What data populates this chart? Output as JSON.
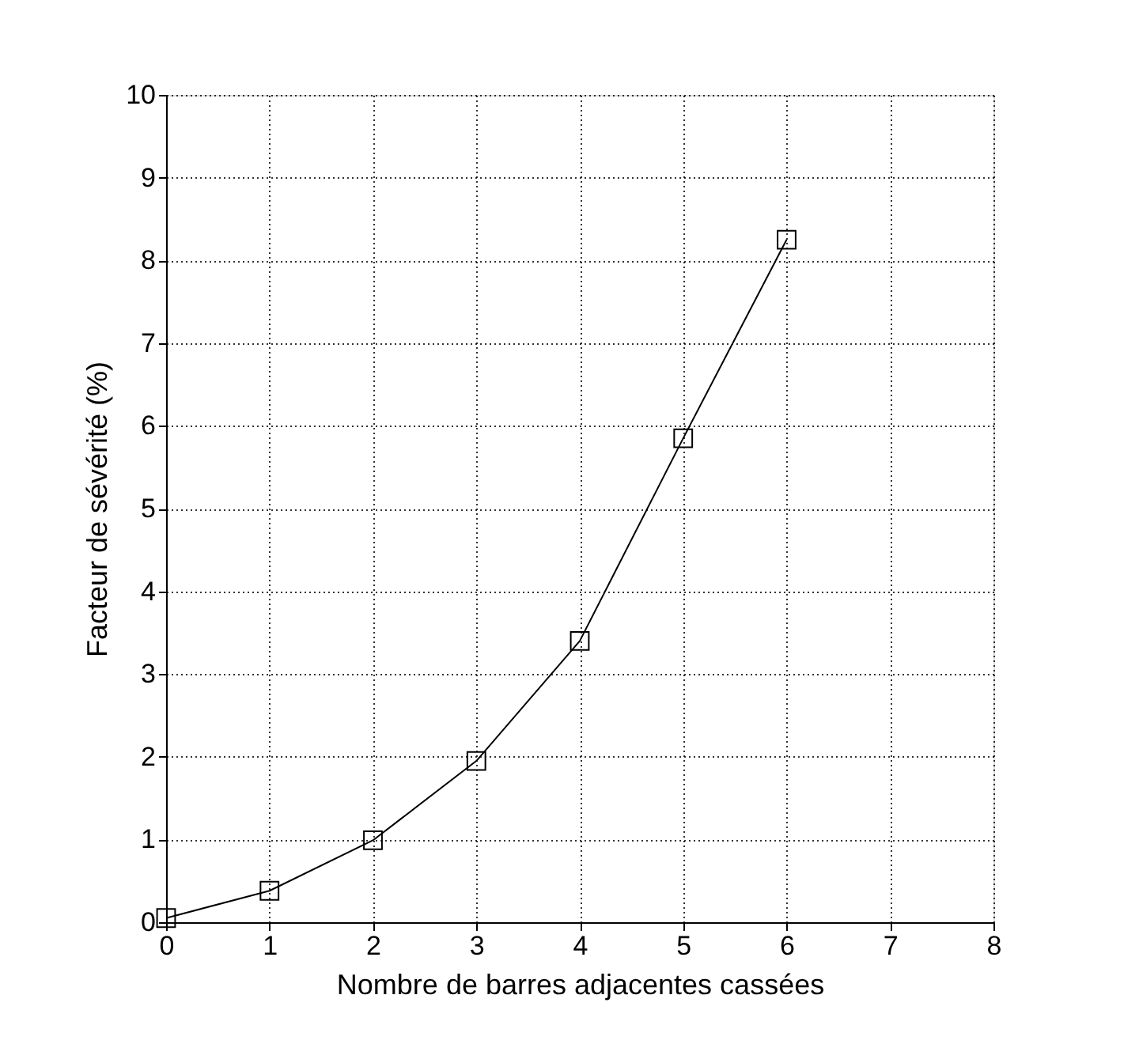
{
  "chart_data": {
    "type": "line",
    "xlabel": "Nombre de barres adjacentes cassées",
    "ylabel": "Facteur de sévérité (%)",
    "x": [
      0,
      1,
      2,
      3,
      4,
      5,
      6
    ],
    "series": [
      {
        "color": "#000000",
        "values": [
          0.05,
          0.38,
          0.99,
          1.95,
          3.4,
          5.85,
          8.25
        ]
      }
    ],
    "xlim": [
      0,
      8
    ],
    "xticks": [
      0,
      1,
      2,
      3,
      4,
      5,
      6,
      7,
      8
    ],
    "ylim": [
      0,
      10
    ],
    "yticks": [
      0,
      1,
      2,
      3,
      4,
      5,
      6,
      7,
      8,
      9,
      10
    ],
    "grid": true,
    "marker": "square",
    "line_style": "solid"
  }
}
